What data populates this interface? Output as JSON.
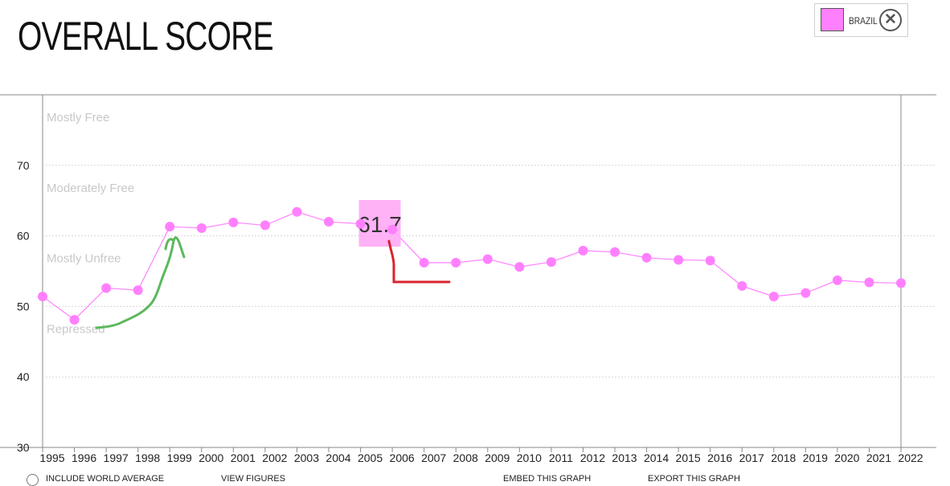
{
  "page": {
    "title": "OVERALL SCORE"
  },
  "legend": {
    "label": "BRAZIL",
    "color": "#ff80ff",
    "close_icon": "close-circle-icon"
  },
  "tooltip": {
    "value": "61.7"
  },
  "footer": {
    "include_world_average": "INCLUDE WORLD AVERAGE",
    "view_figures": "VIEW FIGURES",
    "embed_graph": "EMBED THIS GRAPH",
    "export_graph": "EXPORT THIS GRAPH"
  },
  "chart_data": {
    "type": "line",
    "title": "OVERALL SCORE",
    "xlabel": "",
    "ylabel": "",
    "x": [
      1995,
      1996,
      1997,
      1998,
      1999,
      2000,
      2001,
      2002,
      2003,
      2004,
      2005,
      2006,
      2007,
      2008,
      2009,
      2010,
      2011,
      2012,
      2013,
      2014,
      2015,
      2016,
      2017,
      2018,
      2019,
      2020,
      2021,
      2022
    ],
    "series": [
      {
        "name": "BRAZIL",
        "color": "#ff80ff",
        "values": [
          51.4,
          48.1,
          52.6,
          52.3,
          61.3,
          61.1,
          61.9,
          61.5,
          63.4,
          62.0,
          61.7,
          60.9,
          56.2,
          56.2,
          56.7,
          55.6,
          56.3,
          57.9,
          57.7,
          56.9,
          56.6,
          56.5,
          52.9,
          51.4,
          51.9,
          53.7,
          53.4,
          53.3
        ]
      }
    ],
    "ylim": [
      30,
      80
    ],
    "yticks": [
      30,
      40,
      50,
      60,
      70
    ],
    "grid": true,
    "bands": [
      "Mostly Free",
      "Moderately Free",
      "Mostly Unfree",
      "Repressed"
    ],
    "highlight": {
      "x": 2005,
      "y": 61.7
    }
  }
}
